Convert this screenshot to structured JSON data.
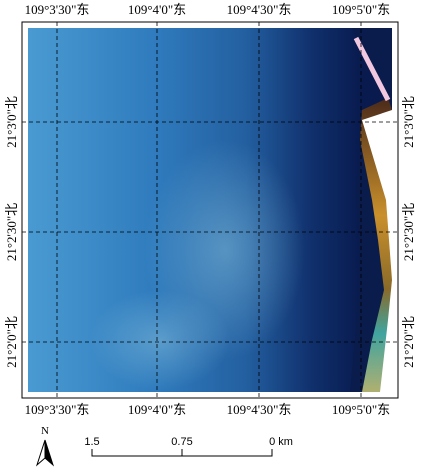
{
  "map": {
    "top_labels": [
      "109°3'30\"东",
      "109°4'0\"东",
      "109°4'30\"东",
      "109°5'0\"东"
    ],
    "bottom_labels": [
      "109°3'30\"东",
      "109°4'0\"东",
      "109°4'30\"东",
      "109°5'0\"东"
    ],
    "left_labels": [
      "21°3'0\"北",
      "21°2'30\"北",
      "21°2'0\"北"
    ],
    "right_labels": [
      "21°3'0\"北",
      "21°2'30\"北",
      "21°2'0\"北"
    ],
    "north": "N",
    "scale_labels": [
      "1.5",
      "0.75",
      "0 km"
    ]
  }
}
